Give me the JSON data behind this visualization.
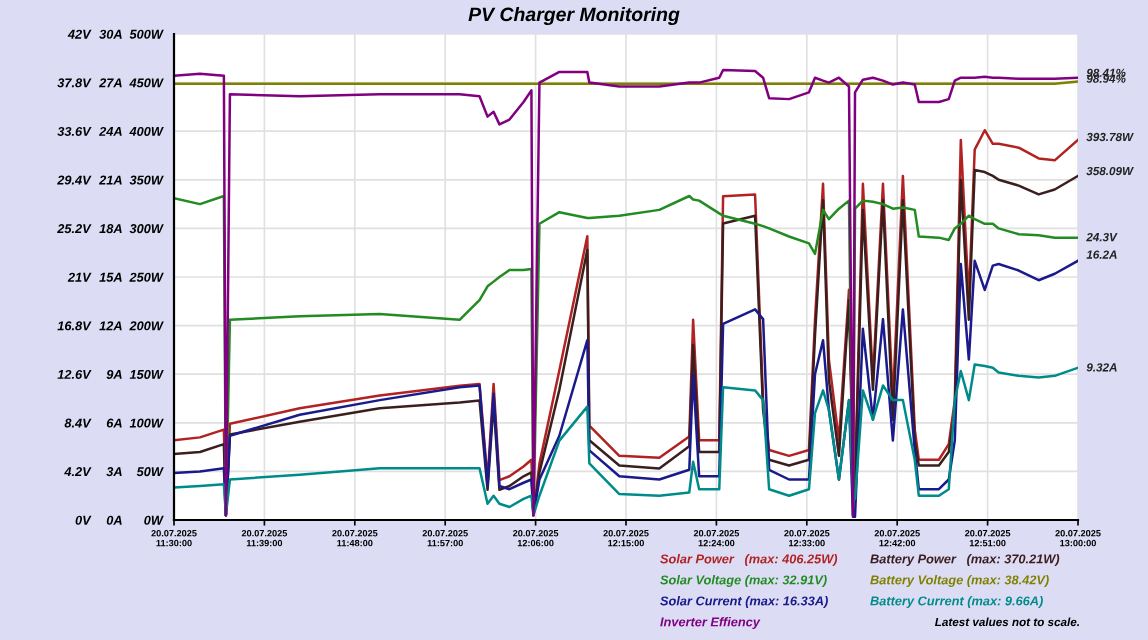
{
  "chart_data": {
    "type": "line",
    "title": "PV Charger Monitoring",
    "x": [
      "2025-07-20T11:30:00",
      "2025-07-20T11:32:35",
      "2025-07-20T11:34:58",
      "2025-07-20T11:35:10",
      "2025-07-20T11:35:34",
      "2025-07-20T11:42:31",
      "2025-07-20T11:50:29",
      "2025-07-20T11:58:26",
      "2025-07-20T12:00:25",
      "2025-07-20T12:01:13",
      "2025-07-20T12:01:49",
      "2025-07-20T12:02:24",
      "2025-07-20T12:03:24",
      "2025-07-20T12:04:48",
      "2025-07-20T12:05:35",
      "2025-07-20T12:05:47",
      "2025-07-20T12:06:23",
      "2025-07-20T12:08:22",
      "2025-07-20T12:11:09",
      "2025-07-20T12:11:21",
      "2025-07-20T12:14:20",
      "2025-07-20T12:18:19",
      "2025-07-20T12:21:18",
      "2025-07-20T12:21:41",
      "2025-07-20T12:22:17",
      "2025-07-20T12:24:17",
      "2025-07-20T12:24:40",
      "2025-07-20T12:27:51",
      "2025-07-20T12:28:39",
      "2025-07-20T12:29:15",
      "2025-07-20T12:31:14",
      "2025-07-20T12:33:13",
      "2025-07-20T12:33:49",
      "2025-07-20T12:34:37",
      "2025-07-20T12:35:12",
      "2025-07-20T12:36:12",
      "2025-07-20T12:37:12",
      "2025-07-20T12:37:36",
      "2025-07-20T12:37:48",
      "2025-07-20T12:38:35",
      "2025-07-20T12:39:35",
      "2025-07-20T12:40:35",
      "2025-07-20T12:41:34",
      "2025-07-20T12:42:34",
      "2025-07-20T12:43:45",
      "2025-07-20T12:44:09",
      "2025-07-20T12:46:09",
      "2025-07-20T12:47:08",
      "2025-07-20T12:47:44",
      "2025-07-20T12:48:20",
      "2025-07-20T12:49:08",
      "2025-07-20T12:49:43",
      "2025-07-20T12:50:43",
      "2025-07-20T12:51:31",
      "2025-07-20T12:52:06",
      "2025-07-20T12:54:06",
      "2025-07-20T12:56:05",
      "2025-07-20T12:57:41",
      "2025-07-20T13:00:00"
    ],
    "series": [
      {
        "name": "Solar Power   (max: 406.25W)",
        "color": "#b22222",
        "values": [
          82,
          85,
          93,
          5,
          99,
          115,
          128,
          138,
          140,
          41,
          140,
          41,
          45,
          55,
          62,
          5,
          58,
          154,
          292,
          97,
          66,
          64,
          86,
          206,
          82,
          82,
          333,
          335,
          123,
          72,
          66,
          72,
          206,
          346,
          165,
          82,
          237,
          60,
          41,
          346,
          144,
          346,
          123,
          354,
          93,
          62,
          62,
          78,
          123,
          391,
          226,
          381,
          401,
          387,
          387,
          383,
          372,
          370,
          391
        ]
      },
      {
        "name": "Battery Power   (max: 370.21W)",
        "color": "#3b1f1f",
        "values": [
          68,
          70,
          78,
          5,
          88,
          101,
          115,
          121,
          123,
          31,
          120,
          31,
          35,
          45,
          49,
          5,
          49,
          134,
          278,
          82,
          56,
          53,
          76,
          180,
          70,
          70,
          305,
          313,
          113,
          62,
          56,
          62,
          190,
          329,
          144,
          66,
          226,
          50,
          31,
          319,
          134,
          329,
          103,
          329,
          82,
          56,
          56,
          70,
          113,
          350,
          206,
          360,
          358,
          354,
          350,
          344,
          335,
          340,
          354
        ]
      },
      {
        "name": "Solar Voltage (max: 32.91V)",
        "color": "#228b22",
        "axis": "y3",
        "values": [
          27.8,
          27.3,
          28.0,
          0.4,
          17.3,
          17.6,
          17.8,
          17.3,
          19.0,
          20.2,
          20.6,
          21.0,
          21.6,
          21.6,
          21.7,
          0.4,
          25.6,
          26.6,
          26.1,
          26.1,
          26.3,
          26.8,
          28.0,
          27.7,
          27.6,
          26.5,
          26.3,
          25.6,
          25.4,
          25.2,
          24.5,
          23.9,
          23.0,
          26.8,
          26.0,
          26.9,
          27.6,
          0.4,
          26.9,
          27.6,
          27.5,
          27.3,
          26.9,
          27.0,
          26.8,
          24.5,
          24.4,
          24.2,
          25.2,
          25.6,
          26.3,
          26.0,
          25.6,
          25.6,
          25.2,
          24.7,
          24.6,
          24.4,
          24.4
        ]
      },
      {
        "name": "Battery Voltage (max: 38.42V)",
        "color": "#808000",
        "axis": "y3",
        "values": [
          37.7,
          37.7,
          37.7,
          37.7,
          37.7,
          37.7,
          37.7,
          37.7,
          37.7,
          37.7,
          37.7,
          37.7,
          37.7,
          37.7,
          37.7,
          37.7,
          37.7,
          37.7,
          37.7,
          37.7,
          37.7,
          37.7,
          37.7,
          37.7,
          37.7,
          37.7,
          37.7,
          37.7,
          37.7,
          37.7,
          37.7,
          37.7,
          37.7,
          37.7,
          37.7,
          37.7,
          37.7,
          37.7,
          37.7,
          37.7,
          37.7,
          37.7,
          37.7,
          37.7,
          37.7,
          37.7,
          37.7,
          37.7,
          37.7,
          37.7,
          37.7,
          37.7,
          37.7,
          37.7,
          37.7,
          37.7,
          37.7,
          37.7,
          37.9
        ]
      },
      {
        "name": "Solar Current (max: 16.33A)",
        "color": "#1a1a8c",
        "axis": "y2",
        "values": [
          2.9,
          3.0,
          3.2,
          0.3,
          5.2,
          6.5,
          7.4,
          8.2,
          8.3,
          2.1,
          7.8,
          2.1,
          1.9,
          2.3,
          2.5,
          0.3,
          2.5,
          5.2,
          11.1,
          4.3,
          2.7,
          2.5,
          3.1,
          9.0,
          2.7,
          2.7,
          12.1,
          13.0,
          12.4,
          3.1,
          2.5,
          2.5,
          9.0,
          11.1,
          6.8,
          2.5,
          7.4,
          0.2,
          0.2,
          11.8,
          6.2,
          12.4,
          4.9,
          13.0,
          4.3,
          1.9,
          1.9,
          2.5,
          4.9,
          15.8,
          9.9,
          16.0,
          14.2,
          15.7,
          15.8,
          15.4,
          14.8,
          15.2,
          16.0
        ]
      },
      {
        "name": "Battery Current (max: 9.66A)",
        "color": "#008b8b",
        "axis": "y2",
        "values": [
          2.0,
          2.1,
          2.2,
          0.3,
          2.5,
          2.8,
          3.2,
          3.2,
          3.2,
          1.0,
          1.5,
          1.0,
          0.8,
          1.3,
          1.5,
          0.3,
          1.5,
          4.9,
          7.0,
          3.5,
          1.6,
          1.5,
          1.7,
          3.6,
          1.9,
          1.9,
          8.2,
          8.0,
          7.4,
          1.9,
          1.5,
          1.9,
          6.6,
          8.0,
          6.8,
          2.5,
          7.4,
          1.8,
          1.3,
          8.0,
          6.2,
          8.3,
          7.4,
          7.4,
          3.7,
          1.5,
          1.5,
          1.9,
          7.4,
          9.2,
          7.4,
          9.6,
          9.5,
          9.4,
          9.1,
          8.9,
          8.8,
          8.9,
          9.4
        ]
      },
      {
        "name": "Inverter Effiency",
        "color": "#800080",
        "values": [
          457,
          459,
          457,
          5,
          438,
          436,
          438,
          438,
          436,
          415,
          420,
          407,
          412,
          430,
          442,
          5,
          450,
          461,
          461,
          450,
          446,
          446,
          450,
          450,
          450,
          455,
          463,
          462,
          455,
          434,
          433,
          440,
          455,
          452,
          450,
          455,
          446,
          5,
          440,
          453,
          455,
          452,
          448,
          450,
          448,
          430,
          430,
          433,
          452,
          455,
          455,
          455,
          456,
          455,
          455,
          454,
          454,
          454,
          455
        ]
      }
    ],
    "xlim": [
      "2025-07-20T11:30",
      "2025-07-20T13:00"
    ],
    "xticks": [
      {
        "value": "2025-07-20T11:30",
        "label": "20.07.2025\n11:30:00"
      },
      {
        "value": "2025-07-20T11:39",
        "label": "20.07.2025\n11:39:00"
      },
      {
        "value": "2025-07-20T11:48",
        "label": "20.07.2025\n11:48:00"
      },
      {
        "value": "2025-07-20T11:57",
        "label": "20.07.2025\n11:57:00"
      },
      {
        "value": "2025-07-20T12:06",
        "label": "20.07.2025\n12:06:00"
      },
      {
        "value": "2025-07-20T12:15",
        "label": "20.07.2025\n12:15:00"
      },
      {
        "value": "2025-07-20T12:24",
        "label": "20.07.2025\n12:24:00"
      },
      {
        "value": "2025-07-20T12:33",
        "label": "20.07.2025\n12:33:00"
      },
      {
        "value": "2025-07-20T12:42",
        "label": "20.07.2025\n12:42:00"
      },
      {
        "value": "2025-07-20T12:51",
        "label": "20.07.2025\n12:51:00"
      },
      {
        "value": "2025-07-20T13:00",
        "label": "20.07.2025\n13:00:00"
      }
    ],
    "ylim": [
      0,
      500
    ],
    "yticks": [
      {
        "value": 0,
        "label": "0W"
      },
      {
        "value": 50,
        "label": "50W"
      },
      {
        "value": 100,
        "label": "100W"
      },
      {
        "value": 150,
        "label": "150W"
      },
      {
        "value": 200,
        "label": "200W"
      },
      {
        "value": 250,
        "label": "250W"
      },
      {
        "value": 300,
        "label": "300W"
      },
      {
        "value": 350,
        "label": "350W"
      },
      {
        "value": 400,
        "label": "400W"
      },
      {
        "value": 450,
        "label": "450W"
      },
      {
        "value": 500,
        "label": "500W"
      }
    ],
    "y2lim": [
      0,
      30
    ],
    "y2ticks": [
      {
        "value": 0,
        "label": "0A"
      },
      {
        "value": 3,
        "label": "3A"
      },
      {
        "value": 6,
        "label": "6A"
      },
      {
        "value": 9,
        "label": "9A"
      },
      {
        "value": 12,
        "label": "12A"
      },
      {
        "value": 15,
        "label": "15A"
      },
      {
        "value": 18,
        "label": "18A"
      },
      {
        "value": 21,
        "label": "21A"
      },
      {
        "value": 24,
        "label": "24A"
      },
      {
        "value": 27,
        "label": "27A"
      },
      {
        "value": 30,
        "label": "30A"
      }
    ],
    "y3lim": [
      0,
      42
    ],
    "y3ticks": [
      {
        "value": 0,
        "label": "0V"
      },
      {
        "value": 4.2,
        "label": "4.2V"
      },
      {
        "value": 8.4,
        "label": "8.4V"
      },
      {
        "value": 12.6,
        "label": "12.6V"
      },
      {
        "value": 16.8,
        "label": "16.8V"
      },
      {
        "value": 21,
        "label": "21V"
      },
      {
        "value": 25.2,
        "label": "25.2V"
      },
      {
        "value": 29.4,
        "label": "29.4V"
      },
      {
        "value": 33.6,
        "label": "33.6V"
      },
      {
        "value": 37.8,
        "label": "37.8V"
      },
      {
        "value": 42,
        "label": "42V"
      }
    ],
    "grid": true,
    "legend": "bottom",
    "marker": "none",
    "line_style": "solid",
    "annotations": [
      {
        "text": "98.41%",
        "x": "2025-07-20T13:00",
        "y": 459
      },
      {
        "text": "98.94%",
        "x": "2025-07-20T13:00",
        "y": 453
      },
      {
        "text": "393.78W",
        "x": "2025-07-20T13:00",
        "y": 393
      },
      {
        "text": "358.09W",
        "x": "2025-07-20T13:00",
        "y": 358
      },
      {
        "text": "24.3V",
        "x": "2025-07-20T13:00",
        "y": 290
      },
      {
        "text": "16.2A",
        "x": "2025-07-20T13:00",
        "y": 272
      },
      {
        "text": "9.32A",
        "x": "2025-07-20T13:00",
        "y": 156
      },
      "Latest values not to scale."
    ]
  }
}
